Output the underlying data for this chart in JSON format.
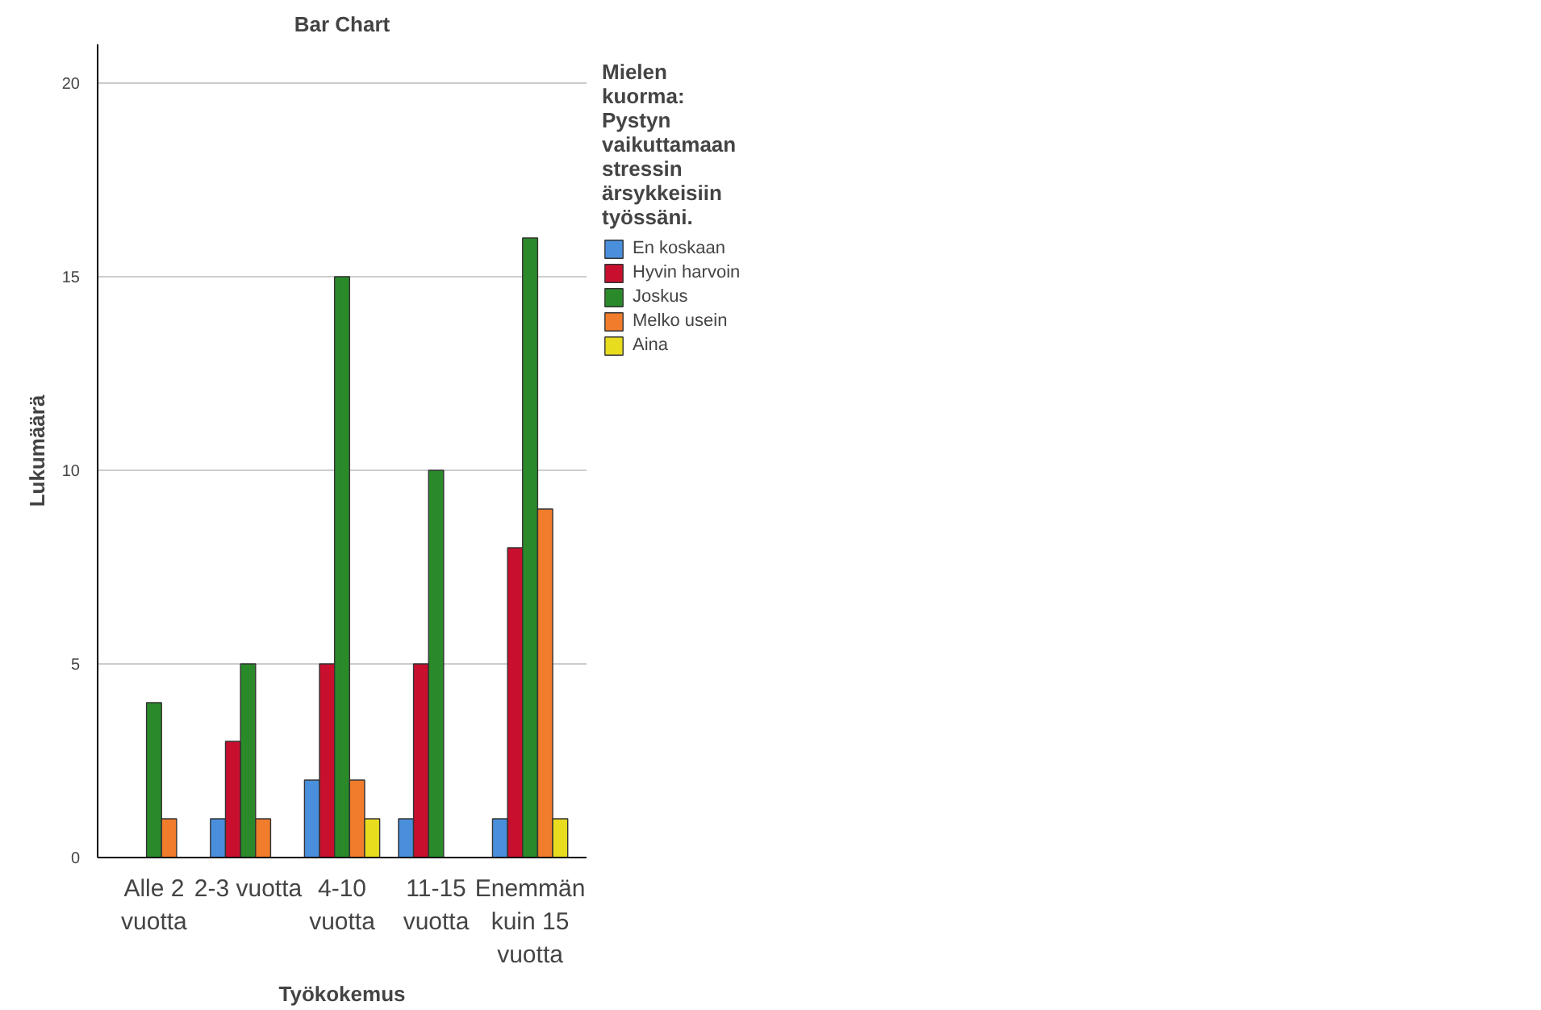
{
  "chart_data": {
    "type": "bar",
    "title": "Bar Chart",
    "xlabel": "Työkokemus",
    "ylabel": "Lukumäärä",
    "legend_title": "Mielen kuorma: Pystyn vaikuttamaan stressin ärsykkeisiin työssäni.",
    "categories": [
      "Alle 2 vuotta",
      "2-3 vuotta",
      "4-10 vuotta",
      "11-15 vuotta",
      "Enemmän kuin 15 vuotta"
    ],
    "series": [
      {
        "name": "En koskaan",
        "color": "#4a8fdc",
        "values": [
          null,
          1,
          2,
          1,
          1
        ]
      },
      {
        "name": "Hyvin harvoin",
        "color": "#c8102e",
        "values": [
          null,
          3,
          5,
          5,
          8
        ]
      },
      {
        "name": "Joskus",
        "color": "#2a8a2a",
        "values": [
          4,
          5,
          15,
          10,
          16
        ]
      },
      {
        "name": "Melko usein",
        "color": "#f07c2c",
        "values": [
          1,
          1,
          2,
          null,
          9
        ]
      },
      {
        "name": "Aina",
        "color": "#e8dc1e",
        "values": [
          null,
          null,
          1,
          null,
          1
        ]
      }
    ],
    "ylim": [
      0,
      21
    ],
    "yticks": [
      0,
      5,
      10,
      15,
      20
    ],
    "grid": "y",
    "legend": "right"
  }
}
